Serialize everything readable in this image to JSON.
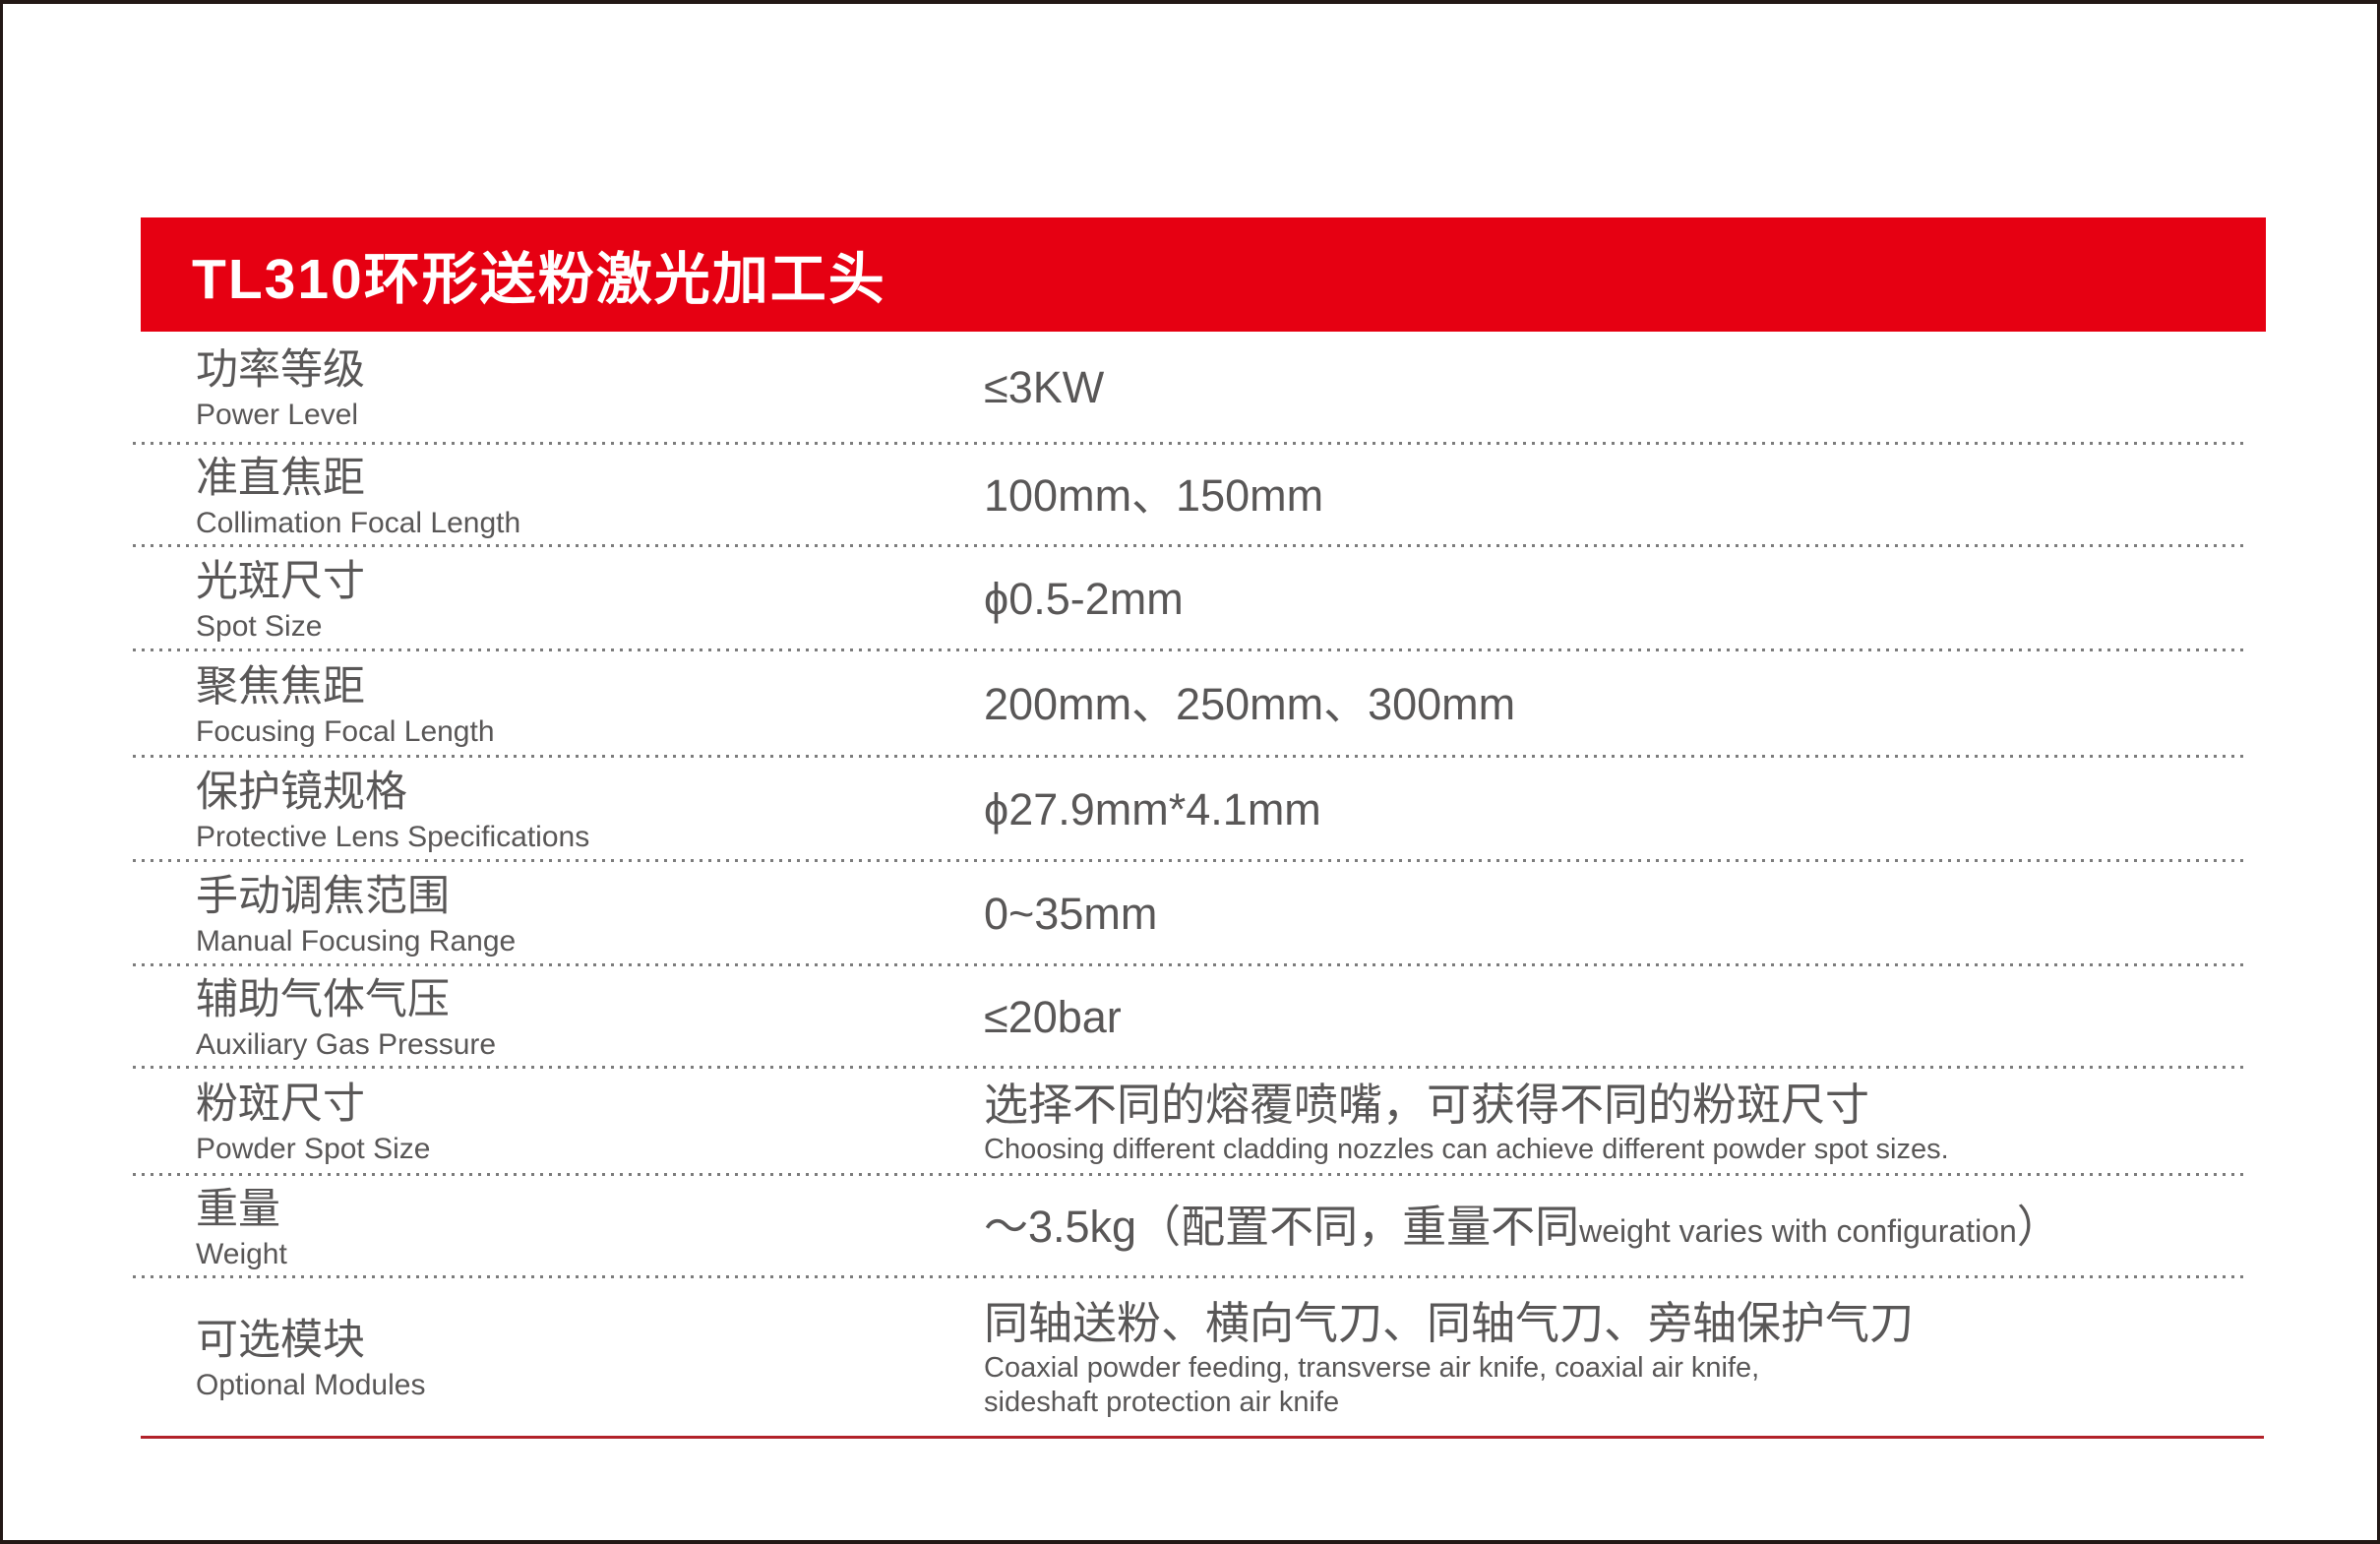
{
  "header": {
    "title": "TL310环形送粉激光加工头"
  },
  "colors": {
    "accent_red": "#e60012",
    "rule_red": "#b2222a",
    "text_gray": "#595757",
    "frame_dark": "#231815"
  },
  "rows": [
    {
      "label_zh": "功率等级",
      "label_en": "Power Level",
      "value": "≤3KW"
    },
    {
      "label_zh": "准直焦距",
      "label_en": "Collimation Focal Length",
      "value": "100mm、150mm"
    },
    {
      "label_zh": "光斑尺寸",
      "label_en": "Spot Size",
      "value": "ϕ0.5-2mm"
    },
    {
      "label_zh": "聚焦焦距",
      "label_en": "Focusing Focal Length",
      "value": "200mm、250mm、300mm"
    },
    {
      "label_zh": "保护镜规格",
      "label_en": "Protective Lens Specifications",
      "value": "ϕ27.9mm*4.1mm"
    },
    {
      "label_zh": "手动调焦范围",
      "label_en": "Manual Focusing Range",
      "value": "0~35mm"
    },
    {
      "label_zh": "辅助气体气压",
      "label_en": "Auxiliary Gas Pressure",
      "value": "≤20bar"
    },
    {
      "label_zh": "粉斑尺寸",
      "label_en": "Powder Spot Size",
      "value": "选择不同的熔覆喷嘴，可获得不同的粉斑尺寸",
      "value_en": "Choosing different cladding nozzles can achieve different powder spot sizes."
    },
    {
      "label_zh": "重量",
      "label_en": "Weight",
      "value": "～3.5kg（配置不同，重量不同",
      "value_small": "weight varies with configuration",
      "value_end": "）"
    },
    {
      "label_zh": "可选模块",
      "label_en": "Optional Modules",
      "value": "同轴送粉、横向气刀、同轴气刀、旁轴保护气刀",
      "value_en": "Coaxial powder feeding, transverse air knife, coaxial air knife,\nsideshaft protection air knife"
    }
  ]
}
